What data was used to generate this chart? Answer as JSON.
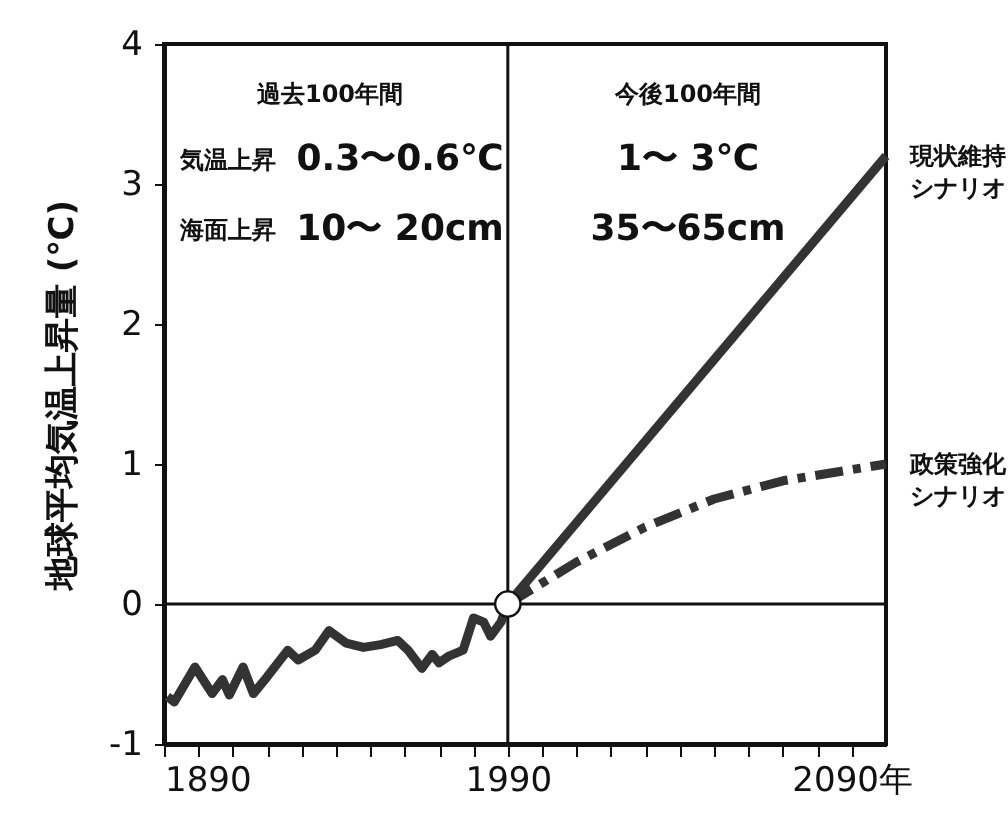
{
  "chart_data": {
    "type": "line",
    "ylabel": "地球平均気温上昇量 (℃)",
    "xlim": [
      1890,
      2100
    ],
    "ylim": [
      -1,
      4
    ],
    "xticks": [
      1890,
      {
        "value": 1900,
        "label": null
      },
      {
        "value": 1910,
        "label": null
      },
      {
        "value": 1920,
        "label": null
      },
      {
        "value": 1930,
        "label": null
      },
      {
        "value": 1940,
        "label": null
      },
      {
        "value": 1950,
        "label": null
      },
      {
        "value": 1960,
        "label": null
      },
      {
        "value": 1970,
        "label": null
      },
      {
        "value": 1980,
        "label": null
      },
      1990,
      {
        "value": 2000,
        "label": null
      },
      {
        "value": 2010,
        "label": null
      },
      {
        "value": 2020,
        "label": null
      },
      {
        "value": 2030,
        "label": null
      },
      {
        "value": 2040,
        "label": null
      },
      {
        "value": 2050,
        "label": null
      },
      {
        "value": 2060,
        "label": null
      },
      {
        "value": 2070,
        "label": null
      },
      {
        "value": 2080,
        "label": null
      },
      {
        "value": 2090,
        "label": "2090年"
      }
    ],
    "yticks": [
      -1,
      0,
      1,
      2,
      3,
      4
    ],
    "ref_lines": [
      {
        "axis": "x",
        "value": 1990
      },
      {
        "axis": "y",
        "value": 0
      }
    ],
    "annotations": [
      "過去100年間",
      "今後100年間",
      "気温上昇",
      "0.3〜0.6℃",
      "1〜 3℃",
      "海面上昇",
      "10〜 20cm",
      "35〜65cm"
    ],
    "series": [
      {
        "color": "#333333",
        "x": [
          1891,
          1893,
          1899,
          1904,
          1907,
          1909,
          1913,
          1916,
          1920,
          1926,
          1929,
          1934,
          1938,
          1943,
          1948,
          1953,
          1958,
          1961,
          1965,
          1968,
          1970,
          1973,
          1977,
          1980,
          1983,
          1985,
          1988,
          1990
        ],
        "values": [
          -0.66,
          -0.7,
          -0.45,
          -0.64,
          -0.54,
          -0.65,
          -0.45,
          -0.64,
          -0.52,
          -0.33,
          -0.4,
          -0.33,
          -0.19,
          -0.28,
          -0.31,
          -0.29,
          -0.26,
          -0.33,
          -0.46,
          -0.36,
          -0.42,
          -0.37,
          -0.33,
          -0.1,
          -0.13,
          -0.23,
          -0.13,
          0
        ]
      },
      {
        "name": "現状維持シナリオ",
        "color": "#333333",
        "x": [
          1990,
          2100
        ],
        "values": [
          0,
          3.2
        ]
      },
      {
        "name": "政策強化シナリオ",
        "color": "#333333",
        "line_style": "dashed",
        "x": [
          1990,
          2010,
          2030,
          2050,
          2070,
          2100
        ],
        "values": [
          0,
          0.3,
          0.55,
          0.75,
          0.88,
          1.0
        ]
      },
      {
        "type": "scatter",
        "marker": "circle",
        "color": "#ffffff",
        "x": [
          1990
        ],
        "values": [
          0
        ]
      }
    ]
  }
}
